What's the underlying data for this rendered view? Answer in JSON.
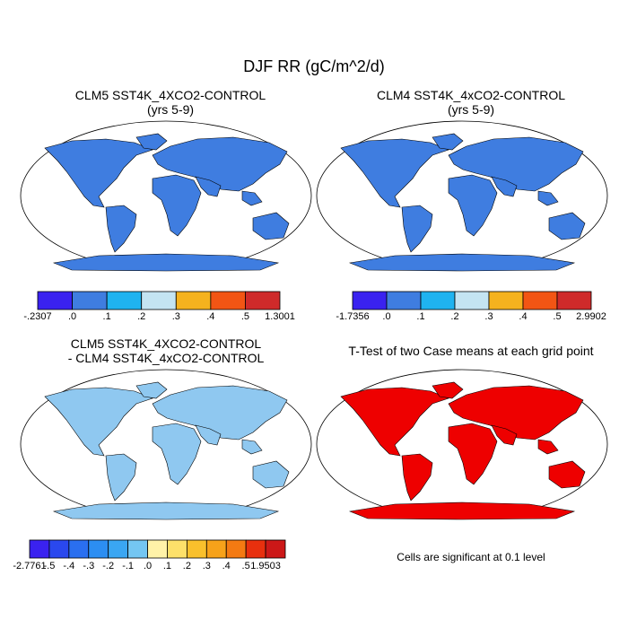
{
  "figure": {
    "title": "DJF RR (gC/m^2/d)"
  },
  "panels": [
    {
      "id": "clm5",
      "title_line1": "CLM5 SST4K_4XCO2-CONTROL",
      "title_line2": "(yrs 5-9)",
      "land_color": "#3f7de0",
      "ocean_color": "#ffffff",
      "colorbar": {
        "labels": [
          "-.2307",
          ".0",
          ".1",
          ".2",
          ".3",
          ".4",
          ".5",
          "1.3001"
        ],
        "colors": [
          "#3a22f0",
          "#3f7de0",
          "#1fb3f0",
          "#c4e4f2",
          "#f5b21e",
          "#f25514",
          "#cf2a2a"
        ]
      }
    },
    {
      "id": "clm4",
      "title_line1": "CLM4 SST4K_4xCO2-CONTROL",
      "title_line2": "(yrs 5-9)",
      "land_color": "#3f7de0",
      "ocean_color": "#ffffff",
      "colorbar": {
        "labels": [
          "-1.7356",
          ".0",
          ".1",
          ".2",
          ".3",
          ".4",
          ".5",
          "2.9902"
        ],
        "colors": [
          "#3a22f0",
          "#3f7de0",
          "#1fb3f0",
          "#c4e4f2",
          "#f5b21e",
          "#f25514",
          "#cf2a2a"
        ]
      }
    },
    {
      "id": "diff",
      "title_line1": "CLM5 SST4K_4XCO2-CONTROL",
      "title_line2": "- CLM4 SST4K_4xCO2-CONTROL",
      "land_color": "#8fc8f0",
      "ocean_color": "#ffffff",
      "colorbar": {
        "labels": [
          "-2.7761",
          "-.5",
          "-.4",
          "-.3",
          "-.2",
          "-.1",
          ".0",
          ".1",
          ".2",
          ".3",
          ".4",
          ".5",
          "1.9503"
        ],
        "colors": [
          "#3a22f0",
          "#2a48ee",
          "#2a6ff0",
          "#2c8ef2",
          "#3aa6f2",
          "#74c6f2",
          "#fff2a8",
          "#fde06a",
          "#f9c02c",
          "#f7a21a",
          "#f47a12",
          "#e8300e",
          "#cc1818"
        ]
      }
    },
    {
      "id": "ttest",
      "title_line1": "T-Test of two Case means at each grid point",
      "note": "Cells are significant at 0.1 level",
      "land_color": "#ee0000",
      "ocean_color": "#ffffff"
    }
  ]
}
